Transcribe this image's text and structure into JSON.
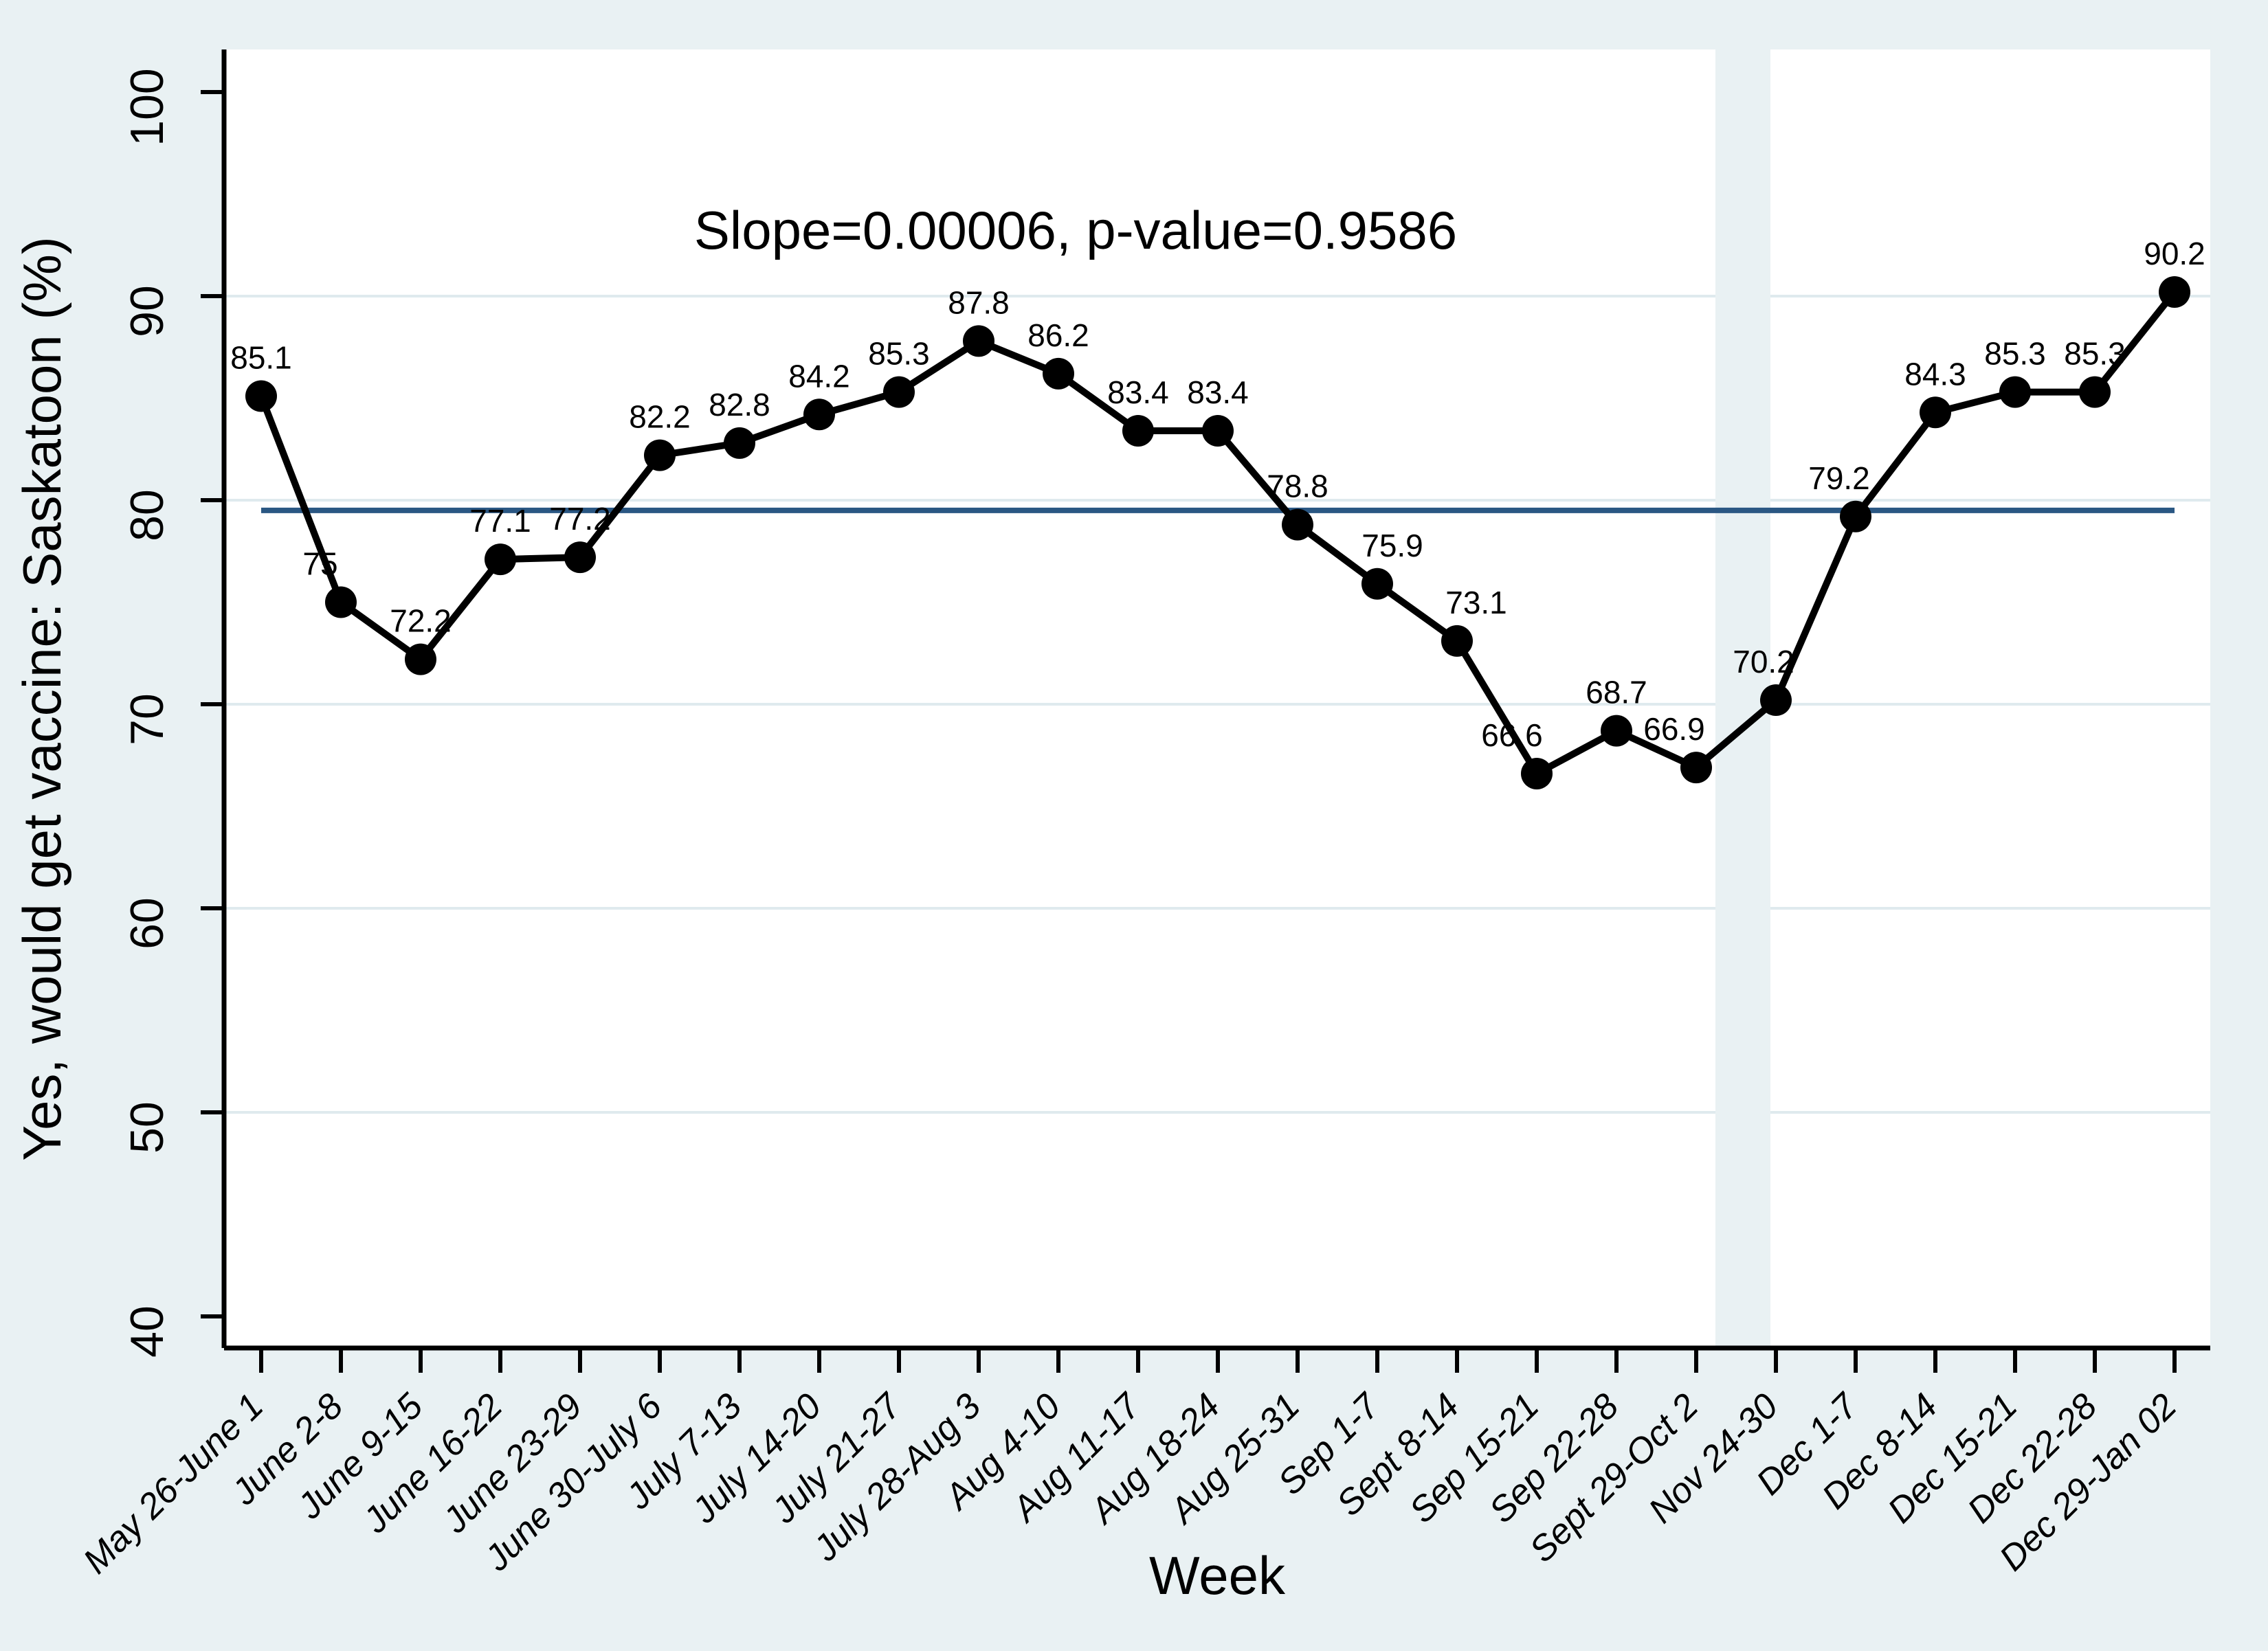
{
  "chart_data": {
    "type": "line",
    "title": "",
    "annotation": "Slope=0.00006, p-value=0.9586",
    "xlabel": "Week",
    "ylabel": "Yes, would get vaccine: Saskatoon (%)",
    "categories": [
      "May 26-June 1",
      "June 2-8",
      "June 9-15",
      "June 16-22",
      "June 23-29",
      "June 30-July 6",
      "July 7-13",
      "July 14-20",
      "July 21-27",
      "July 28-Aug 3",
      "Aug 4-10",
      "Aug 11-17",
      "Aug 18-24",
      "Aug 25-31",
      "Sep 1-7",
      "Sept 8-14",
      "Sep 15-21",
      "Sep 22-28",
      "Sept 29-Oct 2",
      "Nov 24-30",
      "Dec 1-7",
      "Dec 8-14",
      "Dec 15-21",
      "Dec 22-28",
      "Dec 29-Jan 02"
    ],
    "values": [
      85.1,
      75,
      72.2,
      77.1,
      77.2,
      82.2,
      82.8,
      84.2,
      85.3,
      87.8,
      86.2,
      83.4,
      83.4,
      78.8,
      75.9,
      73.1,
      66.6,
      68.7,
      66.9,
      70.2,
      79.2,
      84.3,
      85.3,
      85.3,
      90.2
    ],
    "point_labels": [
      "85.1",
      "75",
      "72.2",
      "77.1",
      "77.2",
      "82.2",
      "82.8",
      "84.2",
      "85.3",
      "87.8",
      "86.2",
      "83.4",
      "83.4",
      "78.8",
      "75.9",
      "73.1",
      "66.6",
      "68.7",
      "66.9",
      "70.2",
      "79.2",
      "84.3",
      "85.3",
      "85.3",
      "90.2"
    ],
    "yticks": [
      40,
      50,
      60,
      70,
      80,
      90,
      100
    ],
    "grid_yticks": [
      50,
      60,
      70,
      80,
      90
    ],
    "ylim": [
      38.3,
      102.1
    ],
    "grid": true,
    "legend": "none",
    "trend_line": {
      "slope": 6e-05,
      "p_value": 0.9586,
      "y_level": 79.5
    },
    "gap_band": {
      "between": [
        "Sept 29-Oct 2",
        "Nov 24-30"
      ]
    },
    "colors": {
      "background": "#e9f1f3",
      "plot_background": "#ffffff",
      "gridline": "#dfeaee",
      "axis": "#000000",
      "series": "#000000",
      "marker": "#000000",
      "trend": "#2a5783",
      "text": "#000000"
    }
  }
}
